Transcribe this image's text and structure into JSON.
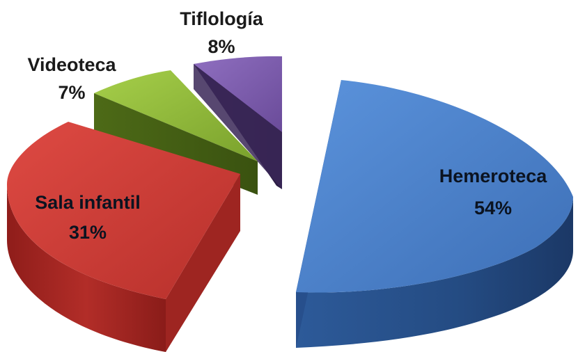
{
  "chart_data": {
    "type": "pie",
    "style": "3d-exploded",
    "title": "",
    "slices": [
      {
        "label": "Hemeroteca",
        "value": 54,
        "value_label": "54%",
        "color": "#4a7ec7"
      },
      {
        "label": "Sala infantil",
        "value": 31,
        "value_label": "31%",
        "color": "#c93a35"
      },
      {
        "label": "Videoteca",
        "value": 7,
        "value_label": "7%",
        "color": "#8fb83a"
      },
      {
        "label": "Tiflología",
        "value": 8,
        "value_label": "8%",
        "color": "#7a5aa8"
      }
    ]
  }
}
